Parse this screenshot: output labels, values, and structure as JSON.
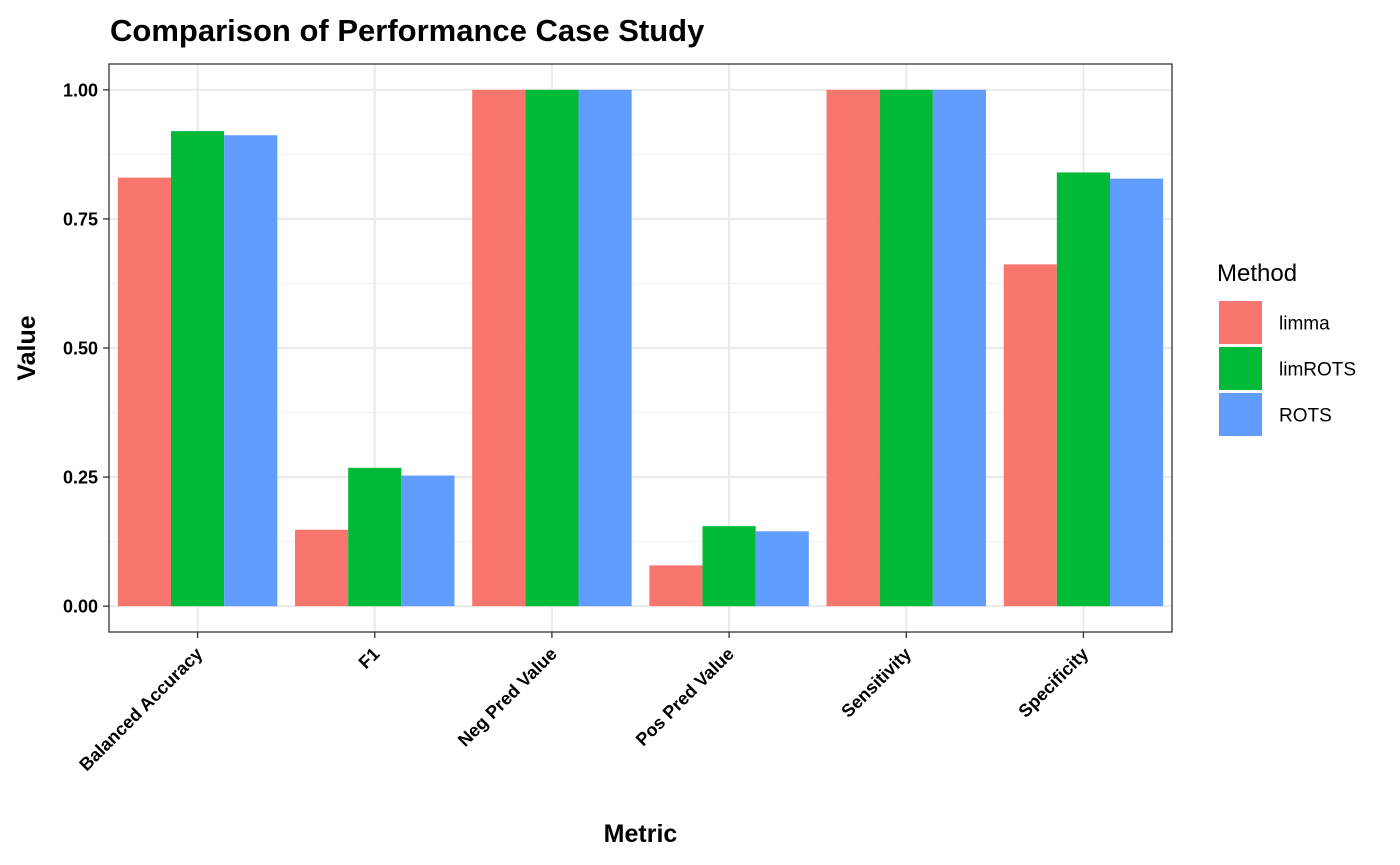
{
  "chart_data": {
    "type": "bar",
    "title": "Comparison of Performance Case Study",
    "xlabel": "Metric",
    "ylabel": "Value",
    "categories": [
      "Balanced Accuracy",
      "F1",
      "Neg Pred Value",
      "Pos Pred Value",
      "Sensitivity",
      "Specificity"
    ],
    "series": [
      {
        "name": "limma",
        "color": "#F8766D",
        "values": [
          0.83,
          0.148,
          1.0,
          0.079,
          1.0,
          0.662
        ]
      },
      {
        "name": "limROTS",
        "color": "#00BA38",
        "values": [
          0.92,
          0.268,
          1.0,
          0.155,
          1.0,
          0.84
        ]
      },
      {
        "name": "ROTS",
        "color": "#619CFF",
        "values": [
          0.912,
          0.253,
          1.0,
          0.145,
          1.0,
          0.828
        ]
      }
    ],
    "ylim": [
      -0.05,
      1.05
    ],
    "yticks": [
      "0.00",
      "0.25",
      "0.50",
      "0.75",
      "1.00"
    ],
    "grid": true,
    "legend": {
      "title": "Method",
      "placement": "right"
    }
  }
}
